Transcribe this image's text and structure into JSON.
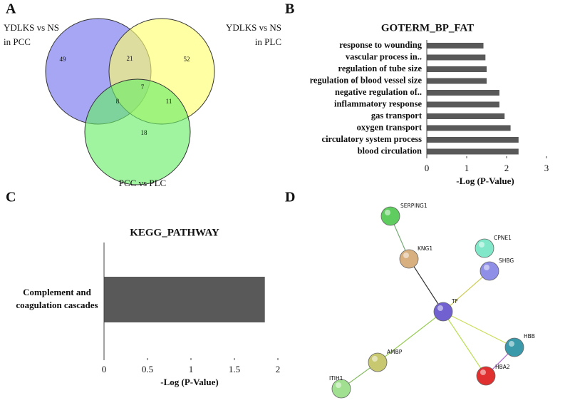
{
  "chart_data": [
    {
      "type": "venn",
      "panel": "A",
      "sets": [
        {
          "label": [
            "YDLKS vs NS",
            "in PCC"
          ],
          "color": "#7070ee"
        },
        {
          "label": [
            "YDLKS vs NS",
            "in PLC"
          ],
          "color": "#ffff6a"
        },
        {
          "label": [
            "PCC vs PLC"
          ],
          "color": "#66ee66"
        }
      ],
      "regions": {
        "only_1": 49,
        "only_2": 52,
        "only_3": 18,
        "1_2": 21,
        "1_3": 8,
        "2_3": 11,
        "all": 7
      }
    },
    {
      "type": "hbar",
      "panel": "B",
      "title": "GOTERM_BP_FAT",
      "categories": [
        "response to wounding",
        "vascular process in..",
        "regulation of tube size",
        "regulation of blood vessel size",
        "negative regulation of..",
        "inflammatory response",
        "gas transport",
        "oxygen transport",
        "circulatory system process",
        "blood circulation"
      ],
      "values": [
        1.42,
        1.47,
        1.5,
        1.5,
        1.82,
        1.82,
        1.95,
        2.1,
        2.3,
        2.3
      ],
      "color": "#595959",
      "xlim": [
        0,
        3
      ],
      "xticks": [
        0,
        1,
        2,
        3
      ],
      "xlabel": "-Log (P-Value)"
    },
    {
      "type": "hbar",
      "panel": "C",
      "title": "KEGG_PATHWAY",
      "categories": [
        [
          "Complement and",
          "coagulation cascades"
        ]
      ],
      "values": [
        1.85
      ],
      "color": "#595959",
      "xlim": [
        0,
        2
      ],
      "xticks": [
        0,
        0.5,
        1,
        1.5,
        2
      ],
      "xlabel": "-Log (P-Value)"
    },
    {
      "type": "network",
      "panel": "D",
      "nodes": [
        {
          "label": "SERPING1",
          "color": "#5fcc60"
        },
        {
          "label": "KNG1",
          "color": "#d8b080"
        },
        {
          "label": "CPNE1",
          "color": "#80e8c8"
        },
        {
          "label": "SHBG",
          "color": "#8f8fe8"
        },
        {
          "label": "TF",
          "color": "#7060d0"
        },
        {
          "label": "HBB",
          "color": "#3a9aaa"
        },
        {
          "label": "HBA2",
          "color": "#e03030"
        },
        {
          "label": "AMBP",
          "color": "#c8c870"
        },
        {
          "label": "ITIH1",
          "color": "#a0e090"
        }
      ],
      "edges": [
        [
          "SERPING1",
          "KNG1"
        ],
        [
          "KNG1",
          "TF"
        ],
        [
          "SHBG",
          "TF"
        ],
        [
          "TF",
          "AMBP"
        ],
        [
          "AMBP",
          "ITIH1"
        ],
        [
          "TF",
          "HBB"
        ],
        [
          "TF",
          "HBA2"
        ],
        [
          "HBB",
          "HBA2"
        ]
      ]
    }
  ]
}
